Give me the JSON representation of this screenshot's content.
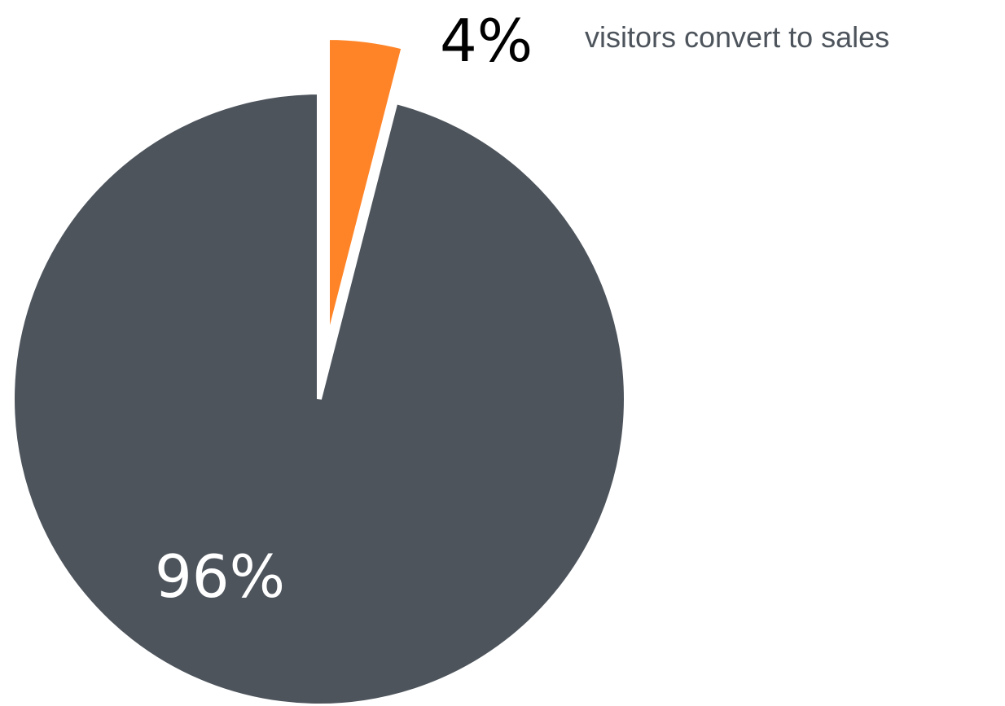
{
  "chart_data": {
    "type": "pie",
    "slices": [
      {
        "value": 4,
        "label": "4%",
        "color": "#FF8427",
        "exploded": true
      },
      {
        "value": 96,
        "label": "96%",
        "color": "#4D545C",
        "exploded": false
      }
    ],
    "annotation": "visitors convert to sales",
    "label_colors": {
      "highlight": "#000000",
      "inside": "#ffffff",
      "annotation": "#4D545C"
    },
    "start_angle": "12 o'clock",
    "direction": "clockwise"
  }
}
